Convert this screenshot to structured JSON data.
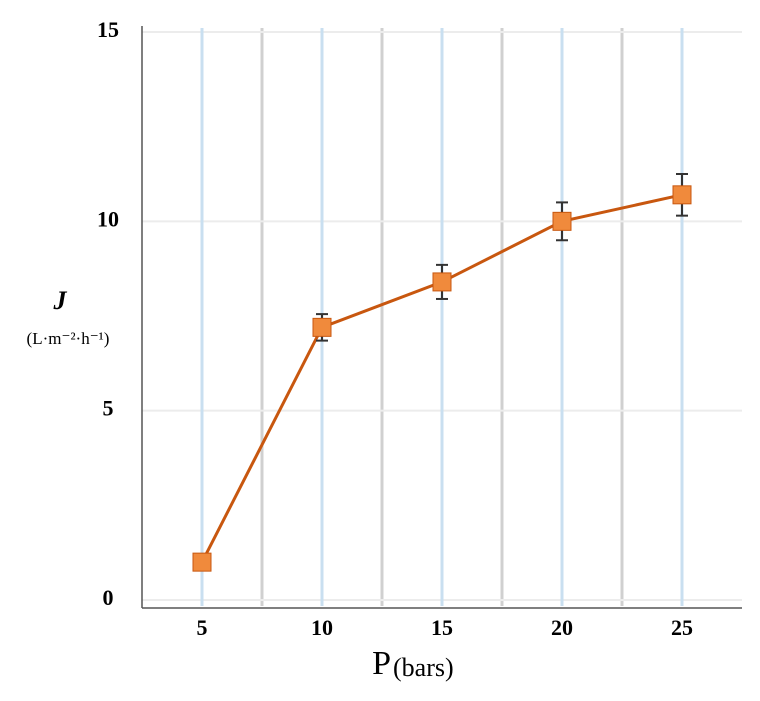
{
  "chart_data": {
    "type": "line",
    "y_label": "J",
    "y_unit": "(L·m⁻²·h⁻¹)",
    "x_label": "P",
    "x_unit": "(bars)",
    "categories": [
      "5",
      "10",
      "15",
      "20",
      "25"
    ],
    "series": [
      {
        "color": "#c8570f",
        "marker_color": "#f08a3c",
        "values": [
          1.0,
          7.2,
          8.4,
          10.0,
          10.7
        ],
        "errors": [
          0,
          0.35,
          0.45,
          0.5,
          0.55
        ]
      }
    ],
    "ylim": [
      0,
      15
    ],
    "yticks": [
      0,
      5,
      10,
      15
    ],
    "grid": true
  }
}
